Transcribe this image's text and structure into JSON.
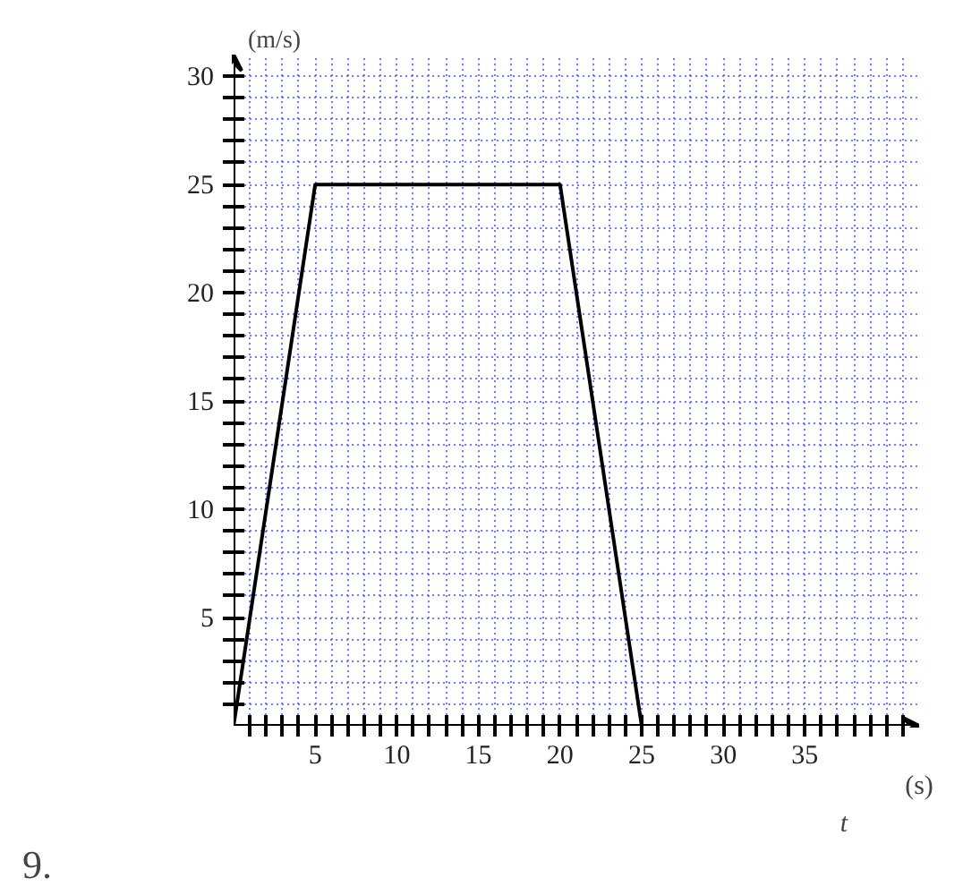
{
  "chart_data": {
    "type": "line",
    "xlabel": "t",
    "ylabel": "(m/s)",
    "annotations": [
      "(s)",
      "9."
    ],
    "x": [
      0,
      5,
      20,
      25
    ],
    "series": [
      {
        "color": "#000000",
        "values": [
          0,
          25,
          25,
          0
        ]
      }
    ],
    "xlim": [
      0,
      42
    ],
    "ylim": [
      0,
      31
    ],
    "xticks": [
      {
        "value": 1,
        "label": null
      },
      {
        "value": 2,
        "label": null
      },
      {
        "value": 3,
        "label": null
      },
      {
        "value": 4,
        "label": null
      },
      5,
      {
        "value": 6,
        "label": null
      },
      {
        "value": 7,
        "label": null
      },
      {
        "value": 8,
        "label": null
      },
      {
        "value": 9,
        "label": null
      },
      10,
      {
        "value": 11,
        "label": null
      },
      {
        "value": 12,
        "label": null
      },
      {
        "value": 13,
        "label": null
      },
      {
        "value": 14,
        "label": null
      },
      15,
      {
        "value": 16,
        "label": null
      },
      {
        "value": 17,
        "label": null
      },
      {
        "value": 18,
        "label": null
      },
      {
        "value": 19,
        "label": null
      },
      20,
      {
        "value": 21,
        "label": null
      },
      {
        "value": 22,
        "label": null
      },
      {
        "value": 23,
        "label": null
      },
      {
        "value": 24,
        "label": null
      },
      25,
      {
        "value": 26,
        "label": null
      },
      {
        "value": 27,
        "label": null
      },
      {
        "value": 28,
        "label": null
      },
      {
        "value": 29,
        "label": null
      },
      30,
      {
        "value": 31,
        "label": null
      },
      {
        "value": 32,
        "label": null
      },
      {
        "value": 33,
        "label": null
      },
      {
        "value": 34,
        "label": null
      },
      35,
      {
        "value": 36,
        "label": null
      },
      {
        "value": 37,
        "label": null
      },
      {
        "value": 38,
        "label": null
      },
      {
        "value": 39,
        "label": null
      },
      {
        "value": 40,
        "label": null
      },
      {
        "value": 41,
        "label": null
      }
    ],
    "yticks": [
      {
        "value": 1,
        "label": null
      },
      {
        "value": 2,
        "label": null
      },
      {
        "value": 3,
        "label": null
      },
      {
        "value": 4,
        "label": null
      },
      5,
      {
        "value": 6,
        "label": null
      },
      {
        "value": 7,
        "label": null
      },
      {
        "value": 8,
        "label": null
      },
      {
        "value": 9,
        "label": null
      },
      10,
      {
        "value": 11,
        "label": null
      },
      {
        "value": 12,
        "label": null
      },
      {
        "value": 13,
        "label": null
      },
      {
        "value": 14,
        "label": null
      },
      15,
      {
        "value": 16,
        "label": null
      },
      {
        "value": 17,
        "label": null
      },
      {
        "value": 18,
        "label": null
      },
      {
        "value": 19,
        "label": null
      },
      20,
      {
        "value": 21,
        "label": null
      },
      {
        "value": 22,
        "label": null
      },
      {
        "value": 23,
        "label": null
      },
      {
        "value": 24,
        "label": null
      },
      25,
      {
        "value": 26,
        "label": null
      },
      {
        "value": 27,
        "label": null
      },
      {
        "value": 28,
        "label": null
      },
      {
        "value": 29,
        "label": null
      },
      30
    ],
    "grid": true,
    "marker": "none",
    "line_style": "solid"
  }
}
